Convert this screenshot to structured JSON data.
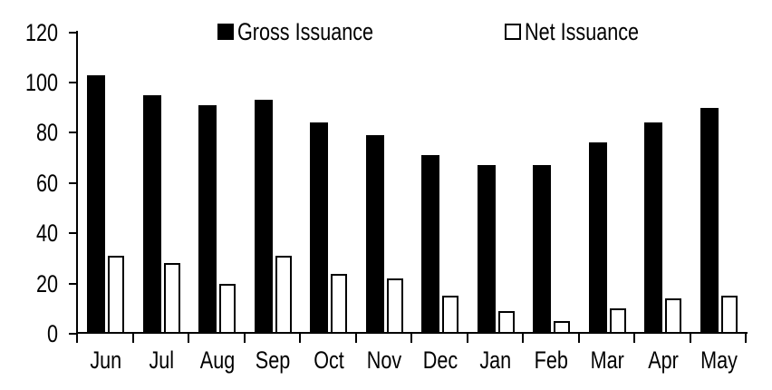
{
  "chart_data": {
    "type": "bar",
    "title": "",
    "xlabel": "",
    "ylabel": "",
    "categories": [
      "Jun",
      "Jul",
      "Aug",
      "Sep",
      "Oct",
      "Nov",
      "Dec",
      "Jan",
      "Feb",
      "Mar",
      "Apr",
      "May"
    ],
    "series": [
      {
        "name": "Gross Issuance",
        "fill": "#000000",
        "stroke": "#000000",
        "values": [
          103,
          95,
          91,
          93,
          84,
          79,
          71,
          67,
          67,
          76,
          84,
          90
        ]
      },
      {
        "name": "Net Issuance",
        "fill": "#ffffff",
        "stroke": "#000000",
        "values": [
          31,
          28,
          20,
          31,
          24,
          22,
          15,
          9,
          5,
          10,
          14,
          15
        ]
      }
    ],
    "ylim": [
      0,
      120
    ],
    "yticks": [
      0,
      20,
      40,
      60,
      80,
      100,
      120
    ],
    "grid": false,
    "legend_position": "top-inside",
    "colors": {
      "background": "#ffffff",
      "axis": "#000000",
      "text": "#000000"
    }
  }
}
